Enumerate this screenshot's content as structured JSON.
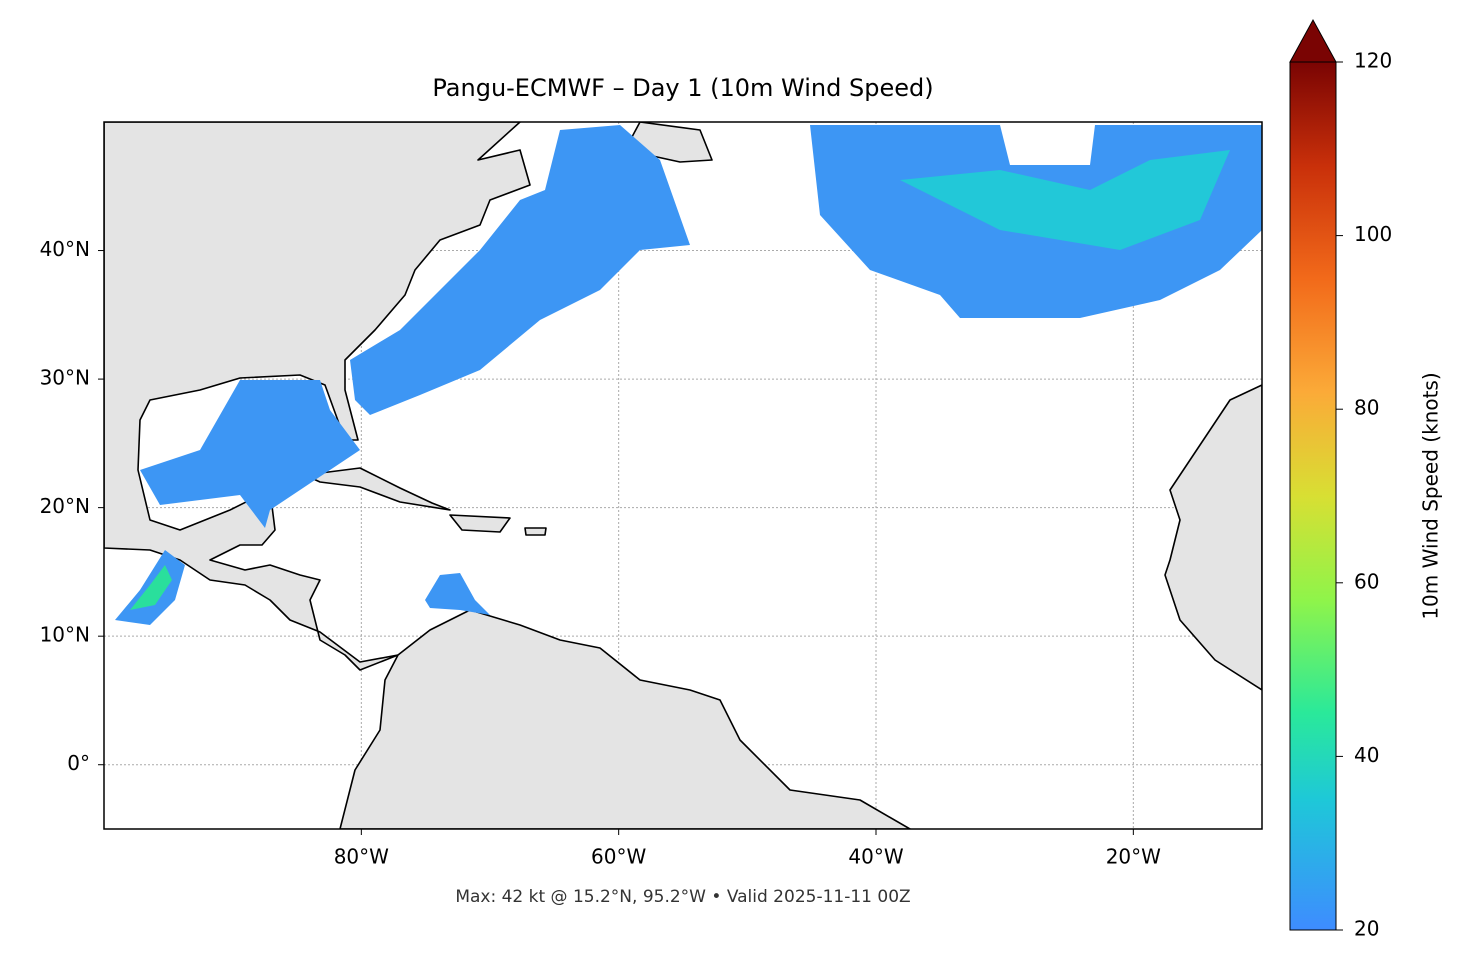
{
  "chart_data": {
    "type": "map",
    "title": "Pangu-ECMWF – Day 1 (10m Wind Speed)",
    "caption": "Max: 42 kt @ 15.2°N, 95.2°W • Valid 2025-11-11 00Z",
    "xlim": [
      -100,
      -10
    ],
    "ylim": [
      -5,
      50
    ],
    "xticks": [
      {
        "value": -80,
        "label": "80°W"
      },
      {
        "value": -60,
        "label": "60°W"
      },
      {
        "value": -40,
        "label": "40°W"
      },
      {
        "value": -20,
        "label": "20°W"
      }
    ],
    "yticks": [
      {
        "value": 0,
        "label": "0°"
      },
      {
        "value": 10,
        "label": "10°N"
      },
      {
        "value": 20,
        "label": "20°N"
      },
      {
        "value": 30,
        "label": "30°N"
      },
      {
        "value": 40,
        "label": "40°N"
      }
    ],
    "grid": true,
    "colorbar": {
      "label": "10m Wind Speed (knots)",
      "lim": [
        20,
        120
      ],
      "ticks": [
        20,
        40,
        60,
        80,
        100,
        120
      ]
    }
  }
}
